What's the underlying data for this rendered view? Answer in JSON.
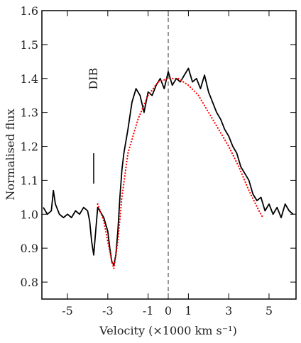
{
  "chart_data": {
    "type": "line",
    "xlabel": "Velocity (×1000 km s⁻¹)",
    "ylabel": "Normalised flux",
    "xlim": [
      -6.27,
      6.34
    ],
    "ylim": [
      0.75,
      1.6
    ],
    "xticks": [
      -5,
      -3,
      -1,
      0,
      1,
      3,
      5
    ],
    "yticks": [
      0.8,
      0.9,
      {
        "value": 1,
        "label": "1.0"
      },
      1.1,
      1.2,
      1.3,
      1.4,
      1.5,
      1.6
    ],
    "vline": 0,
    "annotation": {
      "text": "DIB",
      "x": -3.7,
      "y": [
        1.09,
        1.18
      ]
    },
    "series": [
      {
        "color": "#000000",
        "style": "solid",
        "x": [
          -6.2,
          -6.0,
          -5.8,
          -5.7,
          -5.6,
          -5.4,
          -5.2,
          -5.0,
          -4.8,
          -4.6,
          -4.4,
          -4.2,
          -4.0,
          -3.9,
          -3.8,
          -3.7,
          -3.6,
          -3.5,
          -3.4,
          -3.2,
          -3.0,
          -2.9,
          -2.8,
          -2.7,
          -2.6,
          -2.5,
          -2.4,
          -2.3,
          -2.2,
          -2.0,
          -1.8,
          -1.6,
          -1.4,
          -1.2,
          -1.0,
          -0.8,
          -0.6,
          -0.4,
          -0.2,
          0.0,
          0.2,
          0.4,
          0.6,
          0.8,
          1.0,
          1.2,
          1.4,
          1.6,
          1.8,
          2.0,
          2.2,
          2.4,
          2.6,
          2.8,
          3.0,
          3.2,
          3.4,
          3.6,
          3.8,
          4.0,
          4.2,
          4.4,
          4.6,
          4.8,
          5.0,
          5.2,
          5.4,
          5.6,
          5.8,
          6.0,
          6.2
        ],
        "values": [
          1.02,
          1.0,
          1.01,
          1.07,
          1.03,
          1.0,
          0.99,
          1.0,
          0.99,
          1.01,
          1.0,
          1.02,
          1.01,
          0.98,
          0.92,
          0.88,
          0.95,
          1.02,
          1.01,
          0.99,
          0.95,
          0.9,
          0.86,
          0.85,
          0.88,
          0.95,
          1.05,
          1.13,
          1.18,
          1.25,
          1.33,
          1.37,
          1.35,
          1.3,
          1.36,
          1.35,
          1.38,
          1.4,
          1.37,
          1.42,
          1.38,
          1.4,
          1.39,
          1.41,
          1.43,
          1.39,
          1.4,
          1.37,
          1.41,
          1.36,
          1.33,
          1.3,
          1.28,
          1.25,
          1.23,
          1.2,
          1.18,
          1.14,
          1.12,
          1.1,
          1.06,
          1.04,
          1.05,
          1.01,
          1.03,
          1.0,
          1.02,
          0.99,
          1.03,
          1.01,
          1.0
        ]
      },
      {
        "color": "#ff0000",
        "style": "dotted",
        "x": [
          -3.5,
          -3.2,
          -3.0,
          -2.8,
          -2.7,
          -2.5,
          -2.3,
          -2.0,
          -1.5,
          -1.0,
          -0.5,
          0.0,
          0.5,
          1.0,
          1.5,
          2.0,
          2.5,
          3.0,
          3.5,
          4.0,
          4.5,
          4.7
        ],
        "values": [
          1.03,
          0.98,
          0.92,
          0.86,
          0.84,
          0.92,
          1.05,
          1.18,
          1.28,
          1.35,
          1.39,
          1.4,
          1.4,
          1.38,
          1.35,
          1.3,
          1.25,
          1.2,
          1.14,
          1.07,
          1.01,
          0.99
        ]
      }
    ]
  }
}
